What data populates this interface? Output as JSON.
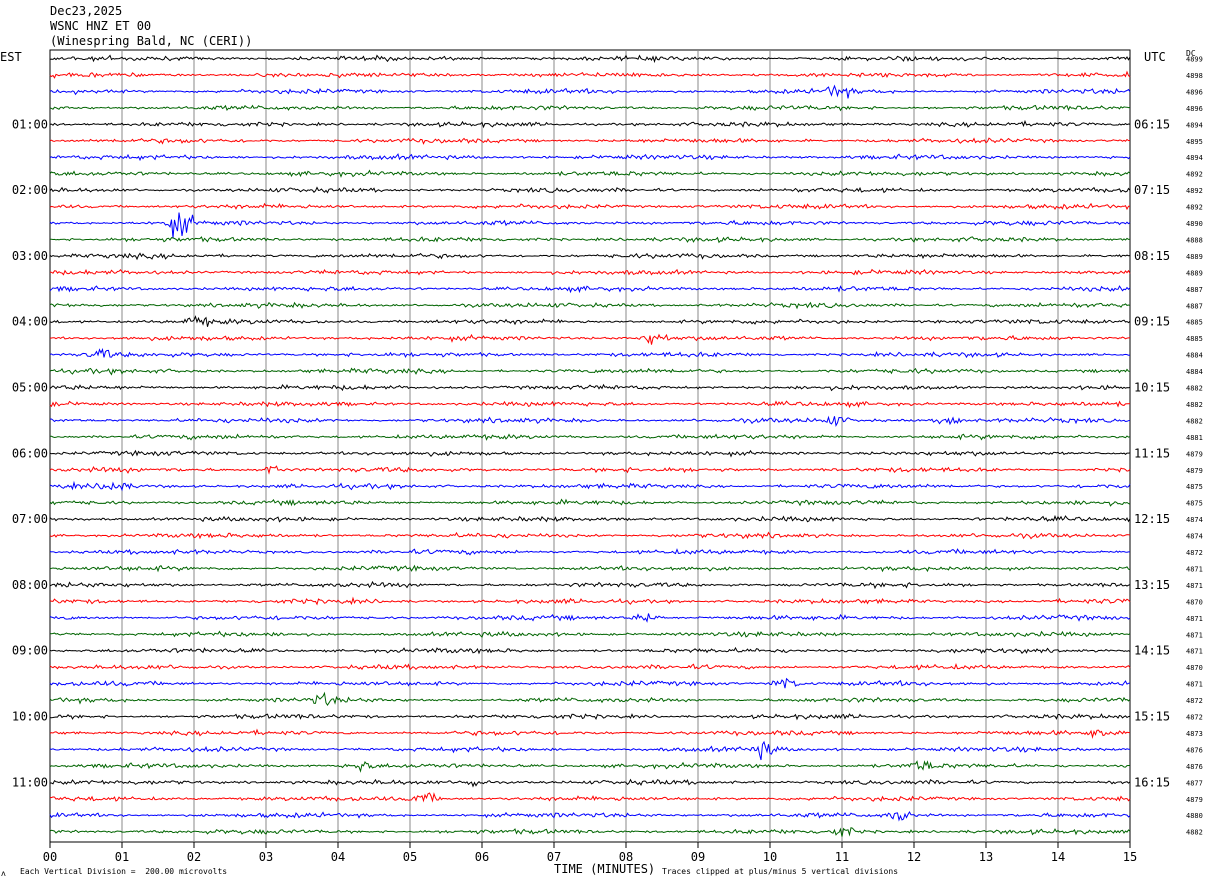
{
  "header": {
    "date": "Dec23,2025",
    "station": "WSNC HNZ ET 00",
    "location": "(Winespring Bald, NC (CERI))"
  },
  "labels": {
    "left_timezone": "EST",
    "right_timezone": "UTC",
    "dc_label": "DC",
    "x_axis_title": "TIME (MINUTES)",
    "division_note": "Each Vertical Division =  200.00 microvolts",
    "clip_note": "Traces clipped at plus/minus 5 vertical divisions",
    "corner_mark": "ʌ"
  },
  "colors": {
    "trace_cycle": [
      "#000000",
      "#ff0000",
      "#0000ff",
      "#006400"
    ],
    "grid": "#888888"
  },
  "chart_data": {
    "type": "line",
    "description_kind": "helicorder seismogram",
    "xlabel": "TIME (MINUTES)",
    "xlim": [
      0,
      15
    ],
    "x_ticks": [
      "00",
      "01",
      "02",
      "03",
      "04",
      "05",
      "06",
      "07",
      "08",
      "09",
      "10",
      "11",
      "12",
      "13",
      "14",
      "15"
    ],
    "left_hour_labels": [
      "01:00",
      "02:00",
      "03:00",
      "04:00",
      "05:00",
      "06:00",
      "07:00",
      "08:00",
      "09:00",
      "10:00",
      "11:00"
    ],
    "right_hour_labels": [
      "06:15",
      "07:15",
      "08:15",
      "09:15",
      "10:15",
      "11:15",
      "12:15",
      "13:15",
      "14:15",
      "15:15",
      "16:15"
    ],
    "trace_count": 48,
    "dc_values": [
      "4899",
      "4898",
      "4896",
      "4896",
      "4894",
      "4895",
      "4894",
      "4892",
      "4892",
      "4892",
      "4890",
      "4888",
      "4889",
      "4889",
      "4887",
      "4887",
      "4885",
      "4885",
      "4884",
      "4884",
      "4882",
      "4882",
      "4882",
      "4881",
      "4879",
      "4879",
      "4875",
      "4875",
      "4874",
      "4874",
      "4872",
      "4871",
      "4871",
      "4870",
      "4871",
      "4871",
      "4871",
      "4870",
      "4871",
      "4872",
      "4872",
      "4873",
      "4876",
      "4876",
      "4877",
      "4879",
      "4880",
      "4882"
    ],
    "events": [
      {
        "trace": 2,
        "minute": 10.95,
        "amp": 2.5
      },
      {
        "trace": 10,
        "minute": 1.8,
        "amp": 6
      },
      {
        "trace": 16,
        "minute": 2.05,
        "amp": 2
      },
      {
        "trace": 17,
        "minute": 8.4,
        "amp": 3
      },
      {
        "trace": 18,
        "minute": 0.7,
        "amp": 2
      },
      {
        "trace": 22,
        "minute": 12.5,
        "amp": 2.5
      },
      {
        "trace": 22,
        "minute": 10.9,
        "amp": 2
      },
      {
        "trace": 26,
        "minute": 0.9,
        "amp": 2.5
      },
      {
        "trace": 25,
        "minute": 3.1,
        "amp": 2
      },
      {
        "trace": 34,
        "minute": 8.3,
        "amp": 2
      },
      {
        "trace": 38,
        "minute": 10.2,
        "amp": 2.5
      },
      {
        "trace": 39,
        "minute": 3.8,
        "amp": 2
      },
      {
        "trace": 42,
        "minute": 9.9,
        "amp": 3
      },
      {
        "trace": 43,
        "minute": 4.3,
        "amp": 2
      },
      {
        "trace": 43,
        "minute": 12.1,
        "amp": 2
      },
      {
        "trace": 44,
        "minute": 5.9,
        "amp": 2
      },
      {
        "trace": 45,
        "minute": 5.2,
        "amp": 2.5
      },
      {
        "trace": 46,
        "minute": 11.8,
        "amp": 2.5
      },
      {
        "trace": 47,
        "minute": 11.0,
        "amp": 2
      },
      {
        "trace": 41,
        "minute": 14.6,
        "amp": 2
      }
    ]
  }
}
